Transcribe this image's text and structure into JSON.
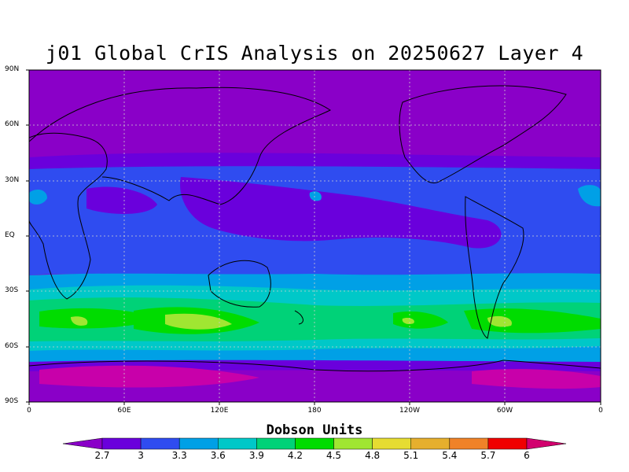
{
  "title": "j01 Global CrIS Analysis on 20250627 Layer 4",
  "map": {
    "lat_labels": [
      "90N",
      "60N",
      "30N",
      "EQ",
      "30S",
      "60S",
      "90S"
    ],
    "lon_labels": [
      "0",
      "60E",
      "120E",
      "180",
      "120W",
      "60W",
      "0"
    ],
    "grid": true
  },
  "colorbar": {
    "title": "Dobson Units",
    "levels": [
      "2.7",
      "3",
      "3.3",
      "3.6",
      "3.9",
      "4.2",
      "4.5",
      "4.8",
      "5.1",
      "5.4",
      "5.7",
      "6"
    ],
    "colors": [
      "#8a00c8",
      "#6a00dc",
      "#2f4cf0",
      "#00a0e6",
      "#00c8c8",
      "#00d278",
      "#00dc00",
      "#a0e632",
      "#e6dc32",
      "#e6af2d",
      "#f08228",
      "#f00000",
      "#d2006e"
    ]
  }
}
